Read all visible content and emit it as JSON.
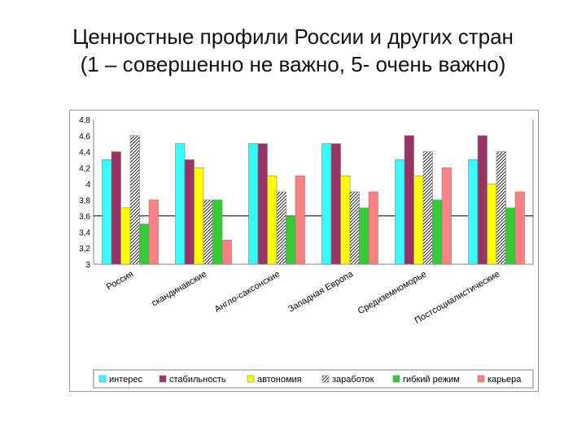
{
  "title_line1": "Ценностные профили России и других стран",
  "title_line2": "(1 – совершенно не важно, 5- очень важно)",
  "chart_data": {
    "type": "bar",
    "categories": [
      "Россия",
      "скандинавские",
      "Англо-саксонские",
      "Западная Европа",
      "Средиземноморье",
      "Постсоциалистические"
    ],
    "series": [
      {
        "name": "интерес",
        "color": "#33ffff",
        "pattern": "solid",
        "values": [
          4.3,
          4.5,
          4.5,
          4.5,
          4.3,
          4.3
        ]
      },
      {
        "name": "стабильность",
        "color": "#993366",
        "pattern": "solid",
        "values": [
          4.4,
          4.3,
          4.5,
          4.5,
          4.6,
          4.6
        ]
      },
      {
        "name": "автономия",
        "color": "#ffff00",
        "pattern": "solid",
        "values": [
          3.7,
          4.2,
          4.1,
          4.1,
          4.1,
          4.0
        ]
      },
      {
        "name": "заработок",
        "color": "#ffffff",
        "pattern": "hatch",
        "values": [
          4.6,
          3.8,
          3.9,
          3.9,
          4.4,
          4.4
        ]
      },
      {
        "name": "гибкий режим",
        "color": "#33cc33",
        "pattern": "solid",
        "values": [
          3.5,
          3.8,
          3.6,
          3.7,
          3.8,
          3.7
        ]
      },
      {
        "name": "карьера",
        "color": "#ff8080",
        "pattern": "solid",
        "values": [
          3.8,
          3.3,
          4.1,
          3.9,
          4.2,
          3.9
        ]
      }
    ],
    "yticks": [
      "3",
      "3,2",
      "3,4",
      "3,6",
      "3,8",
      "4",
      "4,2",
      "4,4",
      "4,6",
      "4,8"
    ],
    "ylim": [
      3,
      4.8
    ],
    "reference_line": 3.6,
    "legend_position": "bottom"
  }
}
